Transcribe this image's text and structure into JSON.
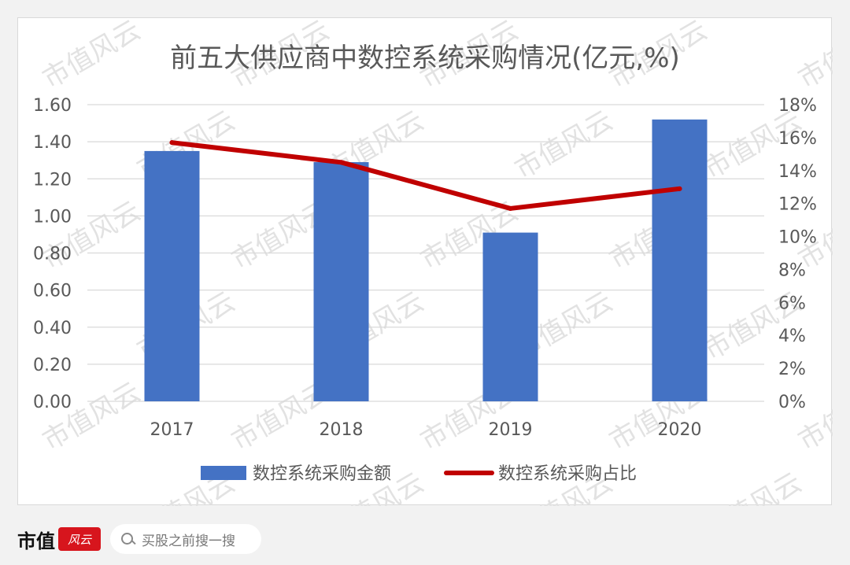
{
  "watermark_text": "市值风云",
  "chart_data": {
    "type": "bar",
    "title": "前五大供应商中数控系统采购情况(亿元,%)",
    "categories": [
      "2017",
      "2018",
      "2019",
      "2020"
    ],
    "series": [
      {
        "name": "数控系统采购金额",
        "type": "bar",
        "axis": "left",
        "color": "#4472c4",
        "values": [
          1.35,
          1.29,
          0.91,
          1.52
        ]
      },
      {
        "name": "数控系统采购占比",
        "type": "line",
        "axis": "right",
        "color": "#c00000",
        "values": [
          15.7,
          14.5,
          11.7,
          12.9
        ]
      }
    ],
    "y_left": {
      "min": 0,
      "max": 1.6,
      "ticks": [
        "0.00",
        "0.20",
        "0.40",
        "0.60",
        "0.80",
        "1.00",
        "1.20",
        "1.40",
        "1.60"
      ]
    },
    "y_right": {
      "min": 0,
      "max": 18,
      "ticks": [
        "0%",
        "2%",
        "4%",
        "6%",
        "8%",
        "10%",
        "12%",
        "14%",
        "16%",
        "18%"
      ]
    },
    "grid": true,
    "legend_position": "bottom"
  },
  "footer": {
    "brand_name": "市值",
    "brand_logo_text": "风云",
    "search_placeholder": "买股之前搜一搜"
  }
}
